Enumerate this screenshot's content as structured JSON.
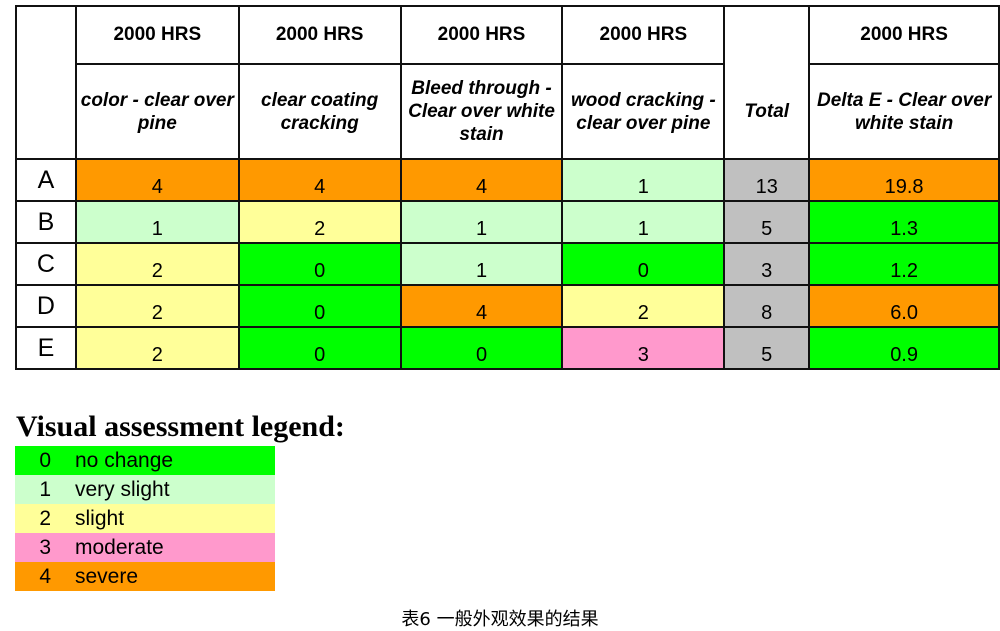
{
  "colors": {
    "0": "#00ff00",
    "1": "#ccffcc",
    "2": "#ffff99",
    "3": "#ff99cc",
    "4": "#ff9900",
    "total": "#c0c0c0"
  },
  "table": {
    "hours_row": [
      "",
      "2000 HRS",
      "2000 HRS",
      "2000 HRS",
      "2000 HRS",
      "",
      "2000 HRS"
    ],
    "columns": [
      "",
      "color - clear over pine",
      "clear coating cracking",
      "Bleed through - Clear over white stain",
      "wood cracking - clear over pine",
      "Total",
      "Delta E - Clear over white stain"
    ],
    "rows": [
      {
        "label": "A",
        "ratings": [
          "4",
          "4",
          "4",
          "1"
        ],
        "total": "13",
        "delta_e": "19.8",
        "delta_e_color": "4"
      },
      {
        "label": "B",
        "ratings": [
          "1",
          "2",
          "1",
          "1"
        ],
        "total": "5",
        "delta_e": "1.3",
        "delta_e_color": "0"
      },
      {
        "label": "C",
        "ratings": [
          "2",
          "0",
          "1",
          "0"
        ],
        "total": "3",
        "delta_e": "1.2",
        "delta_e_color": "0"
      },
      {
        "label": "D",
        "ratings": [
          "2",
          "0",
          "4",
          "2"
        ],
        "total": "8",
        "delta_e": "6.0",
        "delta_e_color": "4"
      },
      {
        "label": "E",
        "ratings": [
          "2",
          "0",
          "0",
          "3"
        ],
        "total": "5",
        "delta_e": "0.9",
        "delta_e_color": "0"
      }
    ]
  },
  "legend": {
    "title": "Visual assessment legend:",
    "items": [
      {
        "value": "0",
        "label": "no change"
      },
      {
        "value": "1",
        "label": "very slight"
      },
      {
        "value": "2",
        "label": "slight"
      },
      {
        "value": "3",
        "label": "moderate"
      },
      {
        "value": "4",
        "label": "severe"
      }
    ]
  },
  "caption": "表6  一般外观效果的结果"
}
